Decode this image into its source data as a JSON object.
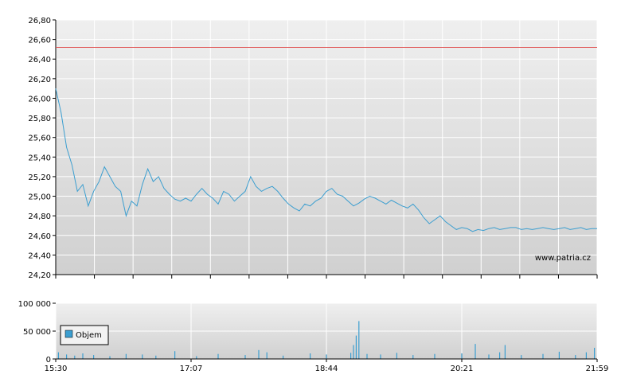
{
  "chart_data": [
    {
      "type": "line",
      "title": "",
      "xlabel": "",
      "ylabel": "",
      "ylim": [
        24.2,
        26.8
      ],
      "y_tick_labels": [
        "24,20",
        "24,40",
        "24,60",
        "24,80",
        "25,00",
        "25,20",
        "25,40",
        "25,60",
        "25,80",
        "26,00",
        "26,20",
        "26,40",
        "26,60",
        "26,80"
      ],
      "y_ticks": [
        24.2,
        24.4,
        24.6,
        24.8,
        25.0,
        25.2,
        25.4,
        25.6,
        25.8,
        26.0,
        26.2,
        26.4,
        26.6,
        26.8
      ],
      "grid": true,
      "reference_line": {
        "value": 26.52,
        "color": "#e05050"
      },
      "line_color": "#3b9ed0",
      "watermark": "www.patria.cz",
      "series": [
        {
          "x": [
            0,
            0.01,
            0.02,
            0.03,
            0.04,
            0.05,
            0.06,
            0.07,
            0.08,
            0.09,
            0.1,
            0.11,
            0.12,
            0.13,
            0.14,
            0.15,
            0.16,
            0.17,
            0.18,
            0.19,
            0.2,
            0.21,
            0.22,
            0.23,
            0.24,
            0.25,
            0.26,
            0.27,
            0.28,
            0.29,
            0.3,
            0.31,
            0.32,
            0.33,
            0.34,
            0.35,
            0.36,
            0.37,
            0.38,
            0.39,
            0.4,
            0.41,
            0.42,
            0.43,
            0.44,
            0.45,
            0.46,
            0.47,
            0.48,
            0.49,
            0.5,
            0.51,
            0.52,
            0.53,
            0.54,
            0.55,
            0.56,
            0.57,
            0.58,
            0.59,
            0.6,
            0.61,
            0.62,
            0.63,
            0.64,
            0.65,
            0.66,
            0.67,
            0.68,
            0.69,
            0.7,
            0.71,
            0.72,
            0.73,
            0.74,
            0.75,
            0.76,
            0.77,
            0.78,
            0.79,
            0.8,
            0.81,
            0.82,
            0.83,
            0.84,
            0.85,
            0.86,
            0.87,
            0.88,
            0.89,
            0.9,
            0.91,
            0.92,
            0.93,
            0.94,
            0.95,
            0.96,
            0.97,
            0.98,
            0.99,
            1.0
          ],
          "values": [
            26.1,
            25.85,
            25.5,
            25.32,
            25.05,
            25.12,
            24.9,
            25.05,
            25.15,
            25.3,
            25.2,
            25.1,
            25.05,
            24.8,
            24.95,
            24.9,
            25.12,
            25.28,
            25.15,
            25.2,
            25.08,
            25.02,
            24.97,
            24.95,
            24.98,
            24.95,
            25.02,
            25.08,
            25.02,
            24.98,
            24.92,
            25.05,
            25.02,
            24.95,
            25.0,
            25.05,
            25.2,
            25.1,
            25.05,
            25.08,
            25.1,
            25.05,
            24.98,
            24.92,
            24.88,
            24.85,
            24.92,
            24.9,
            24.95,
            24.98,
            25.05,
            25.08,
            25.02,
            25.0,
            24.95,
            24.9,
            24.93,
            24.97,
            25.0,
            24.98,
            24.95,
            24.92,
            24.96,
            24.93,
            24.9,
            24.88,
            24.92,
            24.86,
            24.78,
            24.72,
            24.76,
            24.8,
            24.74,
            24.7,
            24.66,
            24.68,
            24.67,
            24.64,
            24.66,
            24.65,
            24.67,
            24.68,
            24.66,
            24.67,
            24.68,
            24.68,
            24.66,
            24.67,
            24.66,
            24.67,
            24.68,
            24.67,
            24.66,
            24.67,
            24.68,
            24.66,
            24.67,
            24.68,
            24.66,
            24.67,
            24.67
          ]
        }
      ]
    },
    {
      "type": "bar",
      "title": "",
      "xlabel": "",
      "ylabel": "",
      "ylim": [
        0,
        100000
      ],
      "y_tick_labels": [
        "0",
        "50 000",
        "100 000"
      ],
      "y_ticks": [
        0,
        50000,
        100000
      ],
      "x_tick_labels": [
        "15:30",
        "17:07",
        "18:44",
        "20:21",
        "21:59"
      ],
      "grid": true,
      "legend": {
        "label": "Objem",
        "position": "left"
      },
      "bar_color": "#3b9ed0",
      "series": [
        {
          "name": "Objem",
          "x": [
            0.005,
            0.02,
            0.035,
            0.05,
            0.07,
            0.1,
            0.13,
            0.16,
            0.185,
            0.22,
            0.26,
            0.3,
            0.35,
            0.375,
            0.39,
            0.42,
            0.47,
            0.5,
            0.545,
            0.55,
            0.555,
            0.56,
            0.575,
            0.6,
            0.63,
            0.66,
            0.7,
            0.75,
            0.775,
            0.8,
            0.82,
            0.83,
            0.86,
            0.9,
            0.93,
            0.96,
            0.98,
            0.995
          ],
          "values": [
            12000,
            8000,
            6000,
            10000,
            7000,
            5000,
            9000,
            8000,
            6000,
            14000,
            5000,
            9000,
            7000,
            16000,
            12000,
            6000,
            10000,
            8000,
            11000,
            25000,
            42000,
            68000,
            9000,
            8000,
            11000,
            7000,
            9000,
            10000,
            27000,
            8000,
            12000,
            25000,
            7000,
            9000,
            13000,
            7000,
            12000,
            20000
          ]
        }
      ]
    }
  ]
}
